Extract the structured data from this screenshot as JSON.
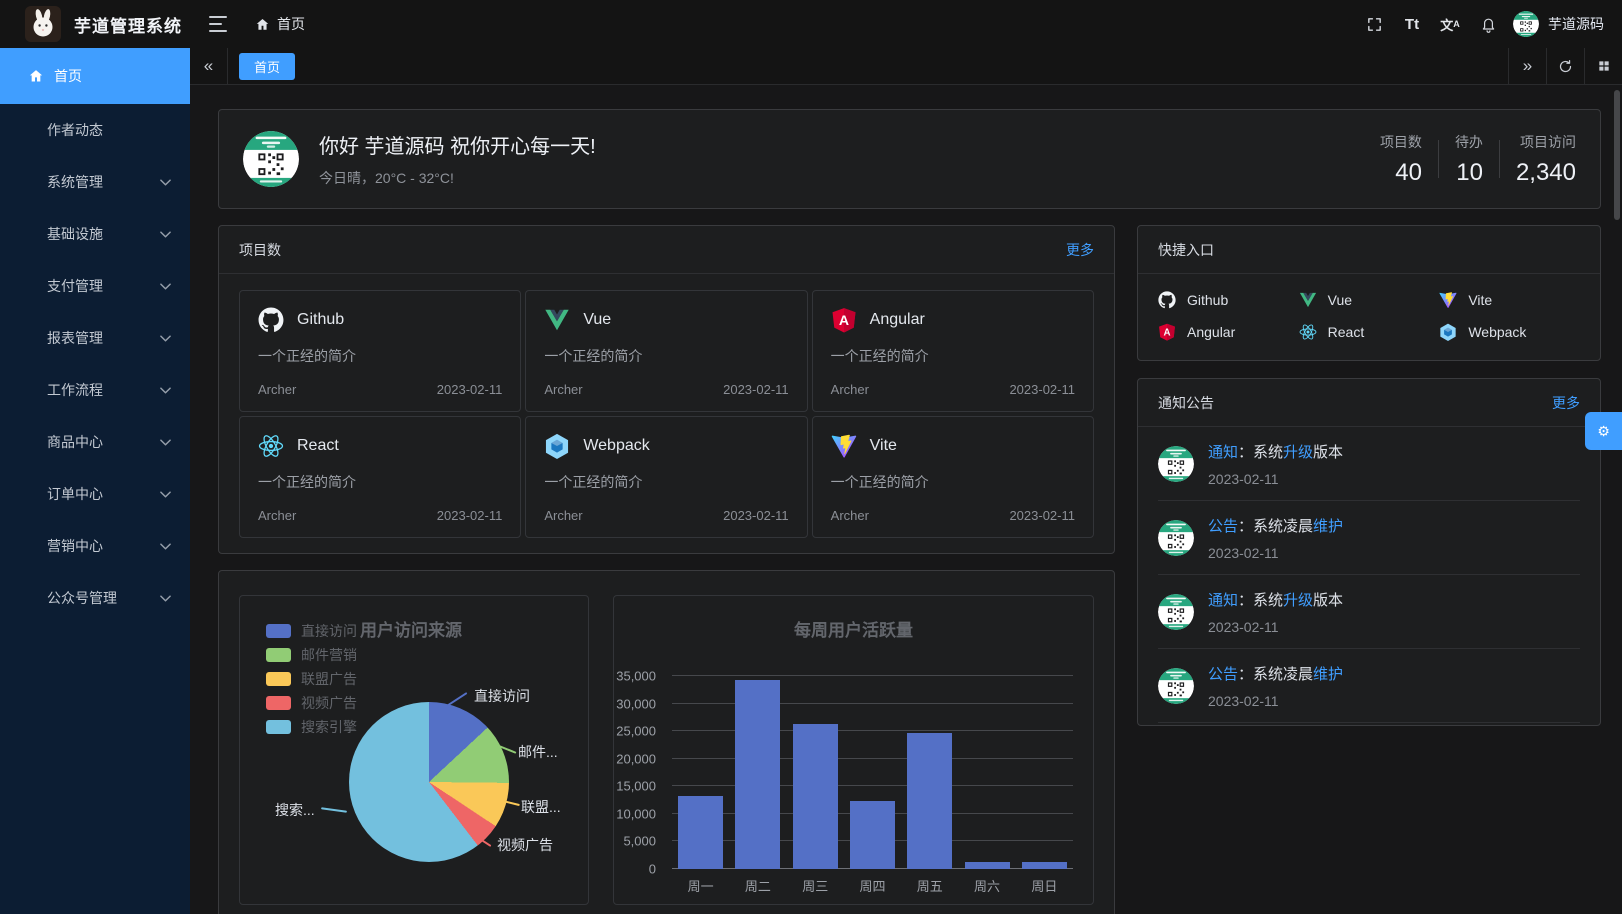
{
  "accent_color": "#409eff",
  "app": {
    "title": "芋道管理系统",
    "user": "芋道源码"
  },
  "header": {
    "breadcrumb_home": "首页",
    "icons": [
      "menu-fold-icon",
      "home-icon",
      "fullscreen-icon",
      "font-size-icon",
      "translate-icon",
      "bell-icon",
      "avatar"
    ]
  },
  "tabbar": {
    "active_tab": "首页"
  },
  "sidebar": {
    "items": [
      {
        "label": "首页",
        "active": true,
        "icon": "home-icon"
      },
      {
        "label": "作者动态"
      },
      {
        "label": "系统管理",
        "expandable": true
      },
      {
        "label": "基础设施",
        "expandable": true
      },
      {
        "label": "支付管理",
        "expandable": true
      },
      {
        "label": "报表管理",
        "expandable": true
      },
      {
        "label": "工作流程",
        "expandable": true
      },
      {
        "label": "商品中心",
        "expandable": true
      },
      {
        "label": "订单中心",
        "expandable": true
      },
      {
        "label": "营销中心",
        "expandable": true
      },
      {
        "label": "公众号管理",
        "expandable": true
      }
    ]
  },
  "welcome": {
    "greeting": "你好 芋道源码 祝你开心每一天!",
    "weather": "今日晴，20°C - 32°C!",
    "stats": [
      {
        "label": "项目数",
        "value": "40"
      },
      {
        "label": "待办",
        "value": "10"
      },
      {
        "label": "项目访问",
        "value": "2,340"
      }
    ]
  },
  "projects": {
    "header": "项目数",
    "more": "更多",
    "items": [
      {
        "name": "Github",
        "icon": "github-icon",
        "desc": "一个正经的简介",
        "author": "Archer",
        "date": "2023-02-11"
      },
      {
        "name": "Vue",
        "icon": "vue-icon",
        "desc": "一个正经的简介",
        "author": "Archer",
        "date": "2023-02-11"
      },
      {
        "name": "Angular",
        "icon": "angular-icon",
        "desc": "一个正经的简介",
        "author": "Archer",
        "date": "2023-02-11"
      },
      {
        "name": "React",
        "icon": "react-icon",
        "desc": "一个正经的简介",
        "author": "Archer",
        "date": "2023-02-11"
      },
      {
        "name": "Webpack",
        "icon": "webpack-icon",
        "desc": "一个正经的简介",
        "author": "Archer",
        "date": "2023-02-11"
      },
      {
        "name": "Vite",
        "icon": "vite-icon",
        "desc": "一个正经的简介",
        "author": "Archer",
        "date": "2023-02-11"
      }
    ]
  },
  "shortcuts": {
    "header": "快捷入口",
    "items": [
      {
        "label": "Github",
        "icon": "github-icon"
      },
      {
        "label": "Vue",
        "icon": "vue-icon"
      },
      {
        "label": "Vite",
        "icon": "vite-icon"
      },
      {
        "label": "Angular",
        "icon": "angular-icon"
      },
      {
        "label": "React",
        "icon": "react-icon"
      },
      {
        "label": "Webpack",
        "icon": "webpack-icon"
      }
    ]
  },
  "notices": {
    "header": "通知公告",
    "more": "更多",
    "items": [
      {
        "segments": [
          {
            "text": "通知",
            "highlight": true
          },
          {
            "text": "：系统",
            "highlight": false
          },
          {
            "text": "升级",
            "highlight": true
          },
          {
            "text": "版本",
            "highlight": false
          }
        ],
        "date": "2023-02-11"
      },
      {
        "segments": [
          {
            "text": "公告",
            "highlight": true
          },
          {
            "text": "：系统凌晨",
            "highlight": false
          },
          {
            "text": "维护",
            "highlight": true
          }
        ],
        "date": "2023-02-11"
      },
      {
        "segments": [
          {
            "text": "通知",
            "highlight": true
          },
          {
            "text": "：系统",
            "highlight": false
          },
          {
            "text": "升级",
            "highlight": true
          },
          {
            "text": "版本",
            "highlight": false
          }
        ],
        "date": "2023-02-11"
      },
      {
        "segments": [
          {
            "text": "公告",
            "highlight": true
          },
          {
            "text": "：系统凌晨",
            "highlight": false
          },
          {
            "text": "维护",
            "highlight": true
          }
        ],
        "date": "2023-02-11"
      }
    ]
  },
  "chart_data": [
    {
      "type": "pie",
      "title": "用户访问来源",
      "legend_position": "left",
      "colors": [
        "#5470c6",
        "#91cc75",
        "#fac858",
        "#ee6666",
        "#73c0de"
      ],
      "series": [
        {
          "name": "直接访问",
          "value": 335
        },
        {
          "name": "邮件营销",
          "value": 310
        },
        {
          "name": "联盟广告",
          "value": 234
        },
        {
          "name": "视频广告",
          "value": 135
        },
        {
          "name": "搜索引擎",
          "value": 1548
        }
      ],
      "callout_labels": [
        "直接访问",
        "邮件...",
        "联盟...",
        "视频广告",
        "搜索..."
      ]
    },
    {
      "type": "bar",
      "title": "每周用户活跃量",
      "categories": [
        "周一",
        "周二",
        "周三",
        "周四",
        "周五",
        "周六",
        "周日"
      ],
      "values": [
        13253,
        34235,
        26321,
        12340,
        24643,
        1322,
        1324
      ],
      "bar_color": "#5470c6",
      "ylim": [
        0,
        35000
      ],
      "y_ticks": [
        "0",
        "5,000",
        "10,000",
        "15,000",
        "20,000",
        "25,000",
        "30,000",
        "35,000"
      ],
      "grid": true,
      "legend": []
    }
  ]
}
